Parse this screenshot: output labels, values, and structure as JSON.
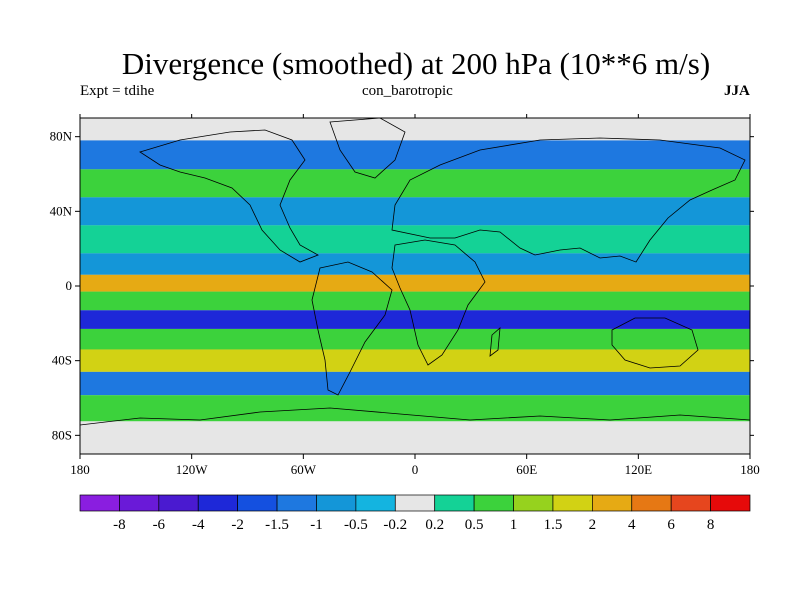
{
  "header": {
    "title": "Divergence (smoothed) at 200 hPa (10**6 m/s)",
    "experiment": "Expt = tdihe",
    "case": "con_barotropic",
    "season": "JJA"
  },
  "map": {
    "projection": "cylindrical-equidistant",
    "lon_range": [
      -180,
      180
    ],
    "lat_range": [
      -90,
      90
    ],
    "lon_ticks": [
      {
        "value": -180,
        "label": "180"
      },
      {
        "value": -120,
        "label": "120W"
      },
      {
        "value": -60,
        "label": "60W"
      },
      {
        "value": 0,
        "label": "0"
      },
      {
        "value": 60,
        "label": "60E"
      },
      {
        "value": 120,
        "label": "120E"
      },
      {
        "value": 180,
        "label": "180"
      }
    ],
    "lat_ticks": [
      {
        "value": 80,
        "label": "80N"
      },
      {
        "value": 40,
        "label": "40N"
      },
      {
        "value": 0,
        "label": "0"
      },
      {
        "value": -40,
        "label": "40S"
      },
      {
        "value": -80,
        "label": "80S"
      }
    ],
    "field_bands": [
      {
        "lat": 86,
        "value": 0.0
      },
      {
        "lat": 70,
        "value": -1.2
      },
      {
        "lat": 55,
        "value": 0.8
      },
      {
        "lat": 40,
        "value": -0.7
      },
      {
        "lat": 25,
        "value": 0.3
      },
      {
        "lat": 10,
        "value": -1.0
      },
      {
        "lat": 2,
        "value": 3.5
      },
      {
        "lat": -8,
        "value": 0.6
      },
      {
        "lat": -18,
        "value": -3.0
      },
      {
        "lat": -28,
        "value": 0.8
      },
      {
        "lat": -40,
        "value": 1.5
      },
      {
        "lat": -52,
        "value": -1.2
      },
      {
        "lat": -65,
        "value": 0.8
      },
      {
        "lat": -80,
        "value": 0.0
      }
    ]
  },
  "colorbar": {
    "labels": [
      "-8",
      "-6",
      "-4",
      "-2",
      "-1.5",
      "-1",
      "-0.5",
      "-0.2",
      "0.2",
      "0.5",
      "1",
      "1.5",
      "2",
      "4",
      "6",
      "8"
    ],
    "colors": [
      "#8a1ee0",
      "#6a1ad8",
      "#4a1ad0",
      "#1e28d8",
      "#1450e0",
      "#1e78e0",
      "#1496d8",
      "#14b4e0",
      "#e6e6e6",
      "#14d296",
      "#3cd23c",
      "#96d21e",
      "#d2d214",
      "#e6aa14",
      "#e67814",
      "#e6461e",
      "#e60a0a"
    ]
  }
}
